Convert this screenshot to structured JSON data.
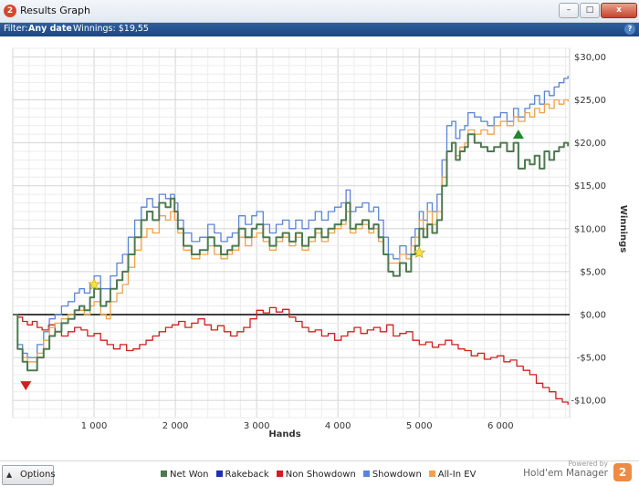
{
  "window": {
    "title": "Results Graph",
    "app_icon_text": "2",
    "minimize_glyph": "–",
    "maximize_glyph": "□",
    "close_glyph": "x"
  },
  "filter": {
    "prefix": "Filter:",
    "range": "Any date",
    "winnings_text": "Winnings: $19,55",
    "help_glyph": "?"
  },
  "bottom": {
    "options_label": "Options",
    "options_arrow": "▲",
    "powered_by": "Powered by",
    "brand_name": "Hold'em Manager",
    "brand_logo_text": "2"
  },
  "legend": [
    {
      "label": "Net Won",
      "color": "#4e7a50"
    },
    {
      "label": "Rakeback",
      "color": "#1f2fb5"
    },
    {
      "label": "Non Showdown",
      "color": "#d21e1e"
    },
    {
      "label": "Showdown",
      "color": "#5a84d6"
    },
    {
      "label": "All-In EV",
      "color": "#f0a24a"
    }
  ],
  "chart_data": {
    "type": "line",
    "xlabel": "Hands",
    "ylabel": "Winnings",
    "xlim": [
      0,
      6850
    ],
    "ylim": [
      -12,
      31
    ],
    "x_ticks": [
      1000,
      2000,
      3000,
      4000,
      5000,
      6000
    ],
    "x_tick_labels": [
      "1 000",
      "2 000",
      "3 000",
      "4 000",
      "5 000",
      "6 000"
    ],
    "y_ticks": [
      30,
      25,
      20,
      15,
      10,
      5,
      0,
      -5,
      -10
    ],
    "y_tick_labels": [
      "$30,00",
      "$25,00",
      "$20,00",
      "$15,00",
      "$10,00",
      "$5,00",
      "$0,00",
      "-$5,00",
      "-$10,00"
    ],
    "grid": true,
    "zero_line": true,
    "axis_side": "right",
    "series": [
      {
        "name": "Net Won",
        "color": "#4e7a50",
        "x": [
          0,
          60,
          120,
          180,
          300,
          380,
          450,
          520,
          600,
          680,
          760,
          820,
          880,
          950,
          1000,
          1080,
          1150,
          1200,
          1280,
          1350,
          1420,
          1500,
          1580,
          1650,
          1720,
          1800,
          1880,
          1940,
          1990,
          2030,
          2100,
          2200,
          2300,
          2400,
          2480,
          2560,
          2640,
          2700,
          2780,
          2860,
          2940,
          3000,
          3080,
          3160,
          3240,
          3320,
          3400,
          3480,
          3560,
          3640,
          3720,
          3800,
          3880,
          3960,
          4040,
          4100,
          4150,
          4220,
          4300,
          4380,
          4440,
          4500,
          4560,
          4620,
          4680,
          4760,
          4840,
          4900,
          4950,
          5000,
          5050,
          5100,
          5160,
          5220,
          5280,
          5340,
          5400,
          5450,
          5500,
          5560,
          5600,
          5680,
          5760,
          5840,
          5920,
          6000,
          6080,
          6160,
          6220,
          6300,
          6360,
          6420,
          6480,
          6540,
          6600,
          6660,
          6720,
          6780,
          6830
        ],
        "y": [
          0,
          -4,
          -5.5,
          -6.5,
          -5,
          -4,
          -2.5,
          -2,
          -1,
          -0.5,
          0.5,
          1,
          0.5,
          2,
          3,
          1,
          1.5,
          3,
          4,
          5,
          7,
          9,
          11,
          12,
          11,
          13,
          12.5,
          13.5,
          12,
          10,
          8,
          7,
          7.5,
          9,
          8,
          7,
          7.5,
          8,
          10,
          9,
          10,
          10.5,
          9,
          8,
          9,
          9.5,
          8.5,
          9.5,
          8,
          9,
          10,
          9,
          10,
          10.5,
          11,
          13,
          10,
          10.5,
          11,
          10,
          10.5,
          9,
          7,
          5,
          4.5,
          6,
          5,
          7,
          8,
          10,
          9,
          10.5,
          9.5,
          11,
          15,
          19,
          20,
          18,
          19,
          19.5,
          21,
          20,
          19.5,
          19,
          19.5,
          20,
          19,
          20,
          17,
          18,
          17.5,
          18.5,
          17,
          19,
          18,
          19,
          19.5,
          20,
          19.6
        ]
      },
      {
        "name": "Non Showdown",
        "color": "#d21e1e",
        "x": [
          0,
          60,
          120,
          180,
          240,
          300,
          360,
          440,
          520,
          600,
          680,
          760,
          840,
          920,
          1000,
          1080,
          1160,
          1240,
          1320,
          1400,
          1480,
          1560,
          1640,
          1720,
          1800,
          1880,
          1960,
          2040,
          2120,
          2200,
          2280,
          2360,
          2440,
          2520,
          2600,
          2680,
          2760,
          2840,
          2920,
          3000,
          3080,
          3160,
          3240,
          3320,
          3400,
          3480,
          3560,
          3640,
          3720,
          3800,
          3880,
          3960,
          4040,
          4120,
          4200,
          4280,
          4360,
          4440,
          4520,
          4600,
          4680,
          4760,
          4840,
          4920,
          5000,
          5080,
          5160,
          5240,
          5320,
          5400,
          5480,
          5560,
          5640,
          5720,
          5800,
          5880,
          5960,
          6040,
          6120,
          6200,
          6280,
          6360,
          6440,
          6520,
          6600,
          6680,
          6760,
          6830
        ],
        "y": [
          0,
          -0.3,
          -0.8,
          -1.2,
          -0.8,
          -1.5,
          -1.8,
          -1.2,
          -2,
          -2.5,
          -2,
          -1.5,
          -1.8,
          -2.5,
          -2.2,
          -3,
          -3.5,
          -4,
          -3.5,
          -4.2,
          -4,
          -3.5,
          -3,
          -2.5,
          -2,
          -1.5,
          -1.2,
          -0.8,
          -1.5,
          -1,
          -0.5,
          -1.2,
          -1.8,
          -1.3,
          -2,
          -2.5,
          -2,
          -1.5,
          -0.5,
          0.5,
          0.2,
          0.8,
          0.3,
          0.6,
          -0.3,
          -0.8,
          -1.5,
          -2,
          -1.8,
          -2.5,
          -2.2,
          -3,
          -2.5,
          -2,
          -1.5,
          -2.2,
          -1.8,
          -1.5,
          -2,
          -1.2,
          -2.5,
          -2.2,
          -2,
          -3,
          -3.5,
          -3.2,
          -3.8,
          -3.5,
          -3,
          -3.5,
          -4,
          -4.2,
          -4.8,
          -4.5,
          -5.2,
          -5,
          -4.8,
          -5.5,
          -5.3,
          -6,
          -6.5,
          -7,
          -8,
          -8.5,
          -9,
          -9.8,
          -10.2,
          -10.5
        ]
      },
      {
        "name": "Showdown",
        "color": "#5a84d6",
        "x": [
          0,
          60,
          120,
          180,
          300,
          380,
          450,
          520,
          600,
          680,
          760,
          820,
          880,
          950,
          1000,
          1080,
          1150,
          1200,
          1280,
          1350,
          1420,
          1500,
          1580,
          1650,
          1720,
          1800,
          1880,
          1940,
          1990,
          2030,
          2100,
          2200,
          2300,
          2400,
          2480,
          2560,
          2640,
          2700,
          2780,
          2860,
          2940,
          3000,
          3080,
          3160,
          3240,
          3320,
          3400,
          3480,
          3560,
          3640,
          3720,
          3800,
          3880,
          3960,
          4040,
          4100,
          4150,
          4220,
          4300,
          4380,
          4440,
          4500,
          4560,
          4620,
          4680,
          4760,
          4840,
          4900,
          4950,
          5000,
          5050,
          5100,
          5160,
          5220,
          5280,
          5340,
          5400,
          5450,
          5500,
          5560,
          5600,
          5680,
          5760,
          5840,
          5920,
          6000,
          6080,
          6160,
          6220,
          6300,
          6360,
          6420,
          6480,
          6540,
          6600,
          6660,
          6720,
          6780,
          6830
        ],
        "y": [
          0,
          -3.5,
          -4.5,
          -5,
          -3.5,
          -2,
          -0.5,
          0,
          1,
          1.5,
          2.5,
          3,
          2.5,
          3.5,
          4.5,
          3,
          3,
          4.5,
          6,
          7,
          9,
          11,
          12.5,
          13.5,
          12.5,
          14,
          13.5,
          14,
          13,
          11,
          9.5,
          8.5,
          9,
          10.5,
          9.5,
          8.5,
          9,
          9.5,
          11.5,
          10.5,
          11.5,
          12,
          10.5,
          9.5,
          10.5,
          11,
          10,
          11,
          10,
          11,
          12,
          11,
          12,
          12.5,
          13,
          14.5,
          12,
          12.5,
          13,
          12,
          12.5,
          11,
          9,
          7,
          6.5,
          8,
          7,
          9,
          10,
          12,
          11,
          13,
          12,
          14,
          18,
          22,
          22.5,
          20.5,
          21.5,
          22,
          23.5,
          23,
          22.5,
          22,
          23,
          23.5,
          22.5,
          24,
          23,
          24,
          24.5,
          25.5,
          24.5,
          26,
          25.5,
          26.5,
          27,
          27.5,
          27.8
        ]
      },
      {
        "name": "All-In EV",
        "color": "#f0a24a",
        "x": [
          0,
          60,
          120,
          180,
          300,
          380,
          450,
          520,
          600,
          680,
          760,
          820,
          880,
          950,
          1000,
          1080,
          1150,
          1200,
          1280,
          1350,
          1420,
          1500,
          1580,
          1650,
          1720,
          1800,
          1880,
          1940,
          1990,
          2030,
          2100,
          2200,
          2300,
          2400,
          2480,
          2560,
          2640,
          2700,
          2780,
          2860,
          2940,
          3000,
          3080,
          3160,
          3240,
          3320,
          3400,
          3480,
          3560,
          3640,
          3720,
          3800,
          3880,
          3960,
          4040,
          4100,
          4150,
          4220,
          4300,
          4380,
          4440,
          4500,
          4560,
          4620,
          4680,
          4760,
          4840,
          4900,
          4950,
          5000,
          5050,
          5100,
          5160,
          5220,
          5280,
          5340,
          5400,
          5450,
          5500,
          5560,
          5600,
          5680,
          5760,
          5840,
          5920,
          6000,
          6080,
          6160,
          6220,
          6300,
          6360,
          6420,
          6480,
          6540,
          6600,
          6660,
          6720,
          6780,
          6830
        ],
        "y": [
          0,
          -4,
          -5,
          -5.5,
          -4.5,
          -3,
          -1.5,
          -1,
          -0.5,
          0,
          0.5,
          0.5,
          0,
          1,
          1.5,
          0,
          -0.5,
          1.5,
          2.5,
          3.5,
          5.5,
          7.5,
          9,
          10,
          9.5,
          11.5,
          11,
          12,
          11,
          9.5,
          7.5,
          6.5,
          7,
          8,
          7,
          6.5,
          7,
          7.5,
          9,
          8,
          9,
          9.5,
          8.5,
          7.5,
          8.5,
          9,
          8,
          9,
          7.5,
          8.5,
          9.5,
          8.5,
          9.5,
          10,
          10.5,
          12,
          9.5,
          10,
          10.5,
          9.5,
          10,
          8.5,
          7,
          6,
          6,
          7,
          6.5,
          8,
          9,
          11,
          10,
          12,
          10.5,
          12,
          16,
          19,
          20,
          18.5,
          19.5,
          20,
          21.5,
          21,
          21.5,
          21,
          22,
          22.5,
          22,
          23,
          22.5,
          23.5,
          23,
          24,
          23.5,
          24.5,
          24,
          25,
          24.5,
          25,
          24.8
        ]
      }
    ],
    "markers": [
      {
        "type": "star",
        "x": 1000,
        "y": 3.5,
        "color": "#f6e33c"
      },
      {
        "type": "star",
        "x": 5000,
        "y": 7.2,
        "color": "#f6e33c"
      },
      {
        "type": "triangle-down",
        "x": 160,
        "y": -8.3,
        "color": "#d21e1e"
      },
      {
        "type": "triangle-up",
        "x": 6220,
        "y": 21,
        "color": "#1f8a2a"
      }
    ]
  }
}
